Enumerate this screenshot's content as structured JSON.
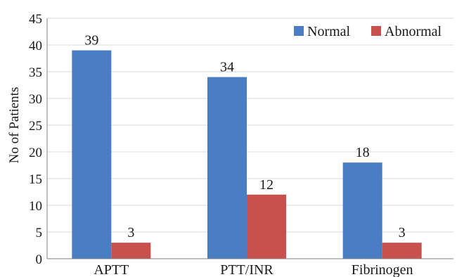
{
  "chart_data": {
    "type": "bar",
    "title": "",
    "xlabel": "",
    "ylabel": "No of Patients",
    "categories": [
      "APTT",
      "PTT/INR",
      "Fibrinogen"
    ],
    "series": [
      {
        "name": "Normal",
        "values": [
          39,
          34,
          18
        ],
        "color": "#4a7ec4"
      },
      {
        "name": "Abnormal",
        "values": [
          3,
          12,
          3
        ],
        "color": "#c8504d"
      }
    ],
    "ylim": [
      0,
      45
    ],
    "yticks": [
      0,
      5,
      10,
      15,
      20,
      25,
      30,
      35,
      40,
      45
    ],
    "grid": true,
    "legend_position": "top-right",
    "data_labels": true
  }
}
